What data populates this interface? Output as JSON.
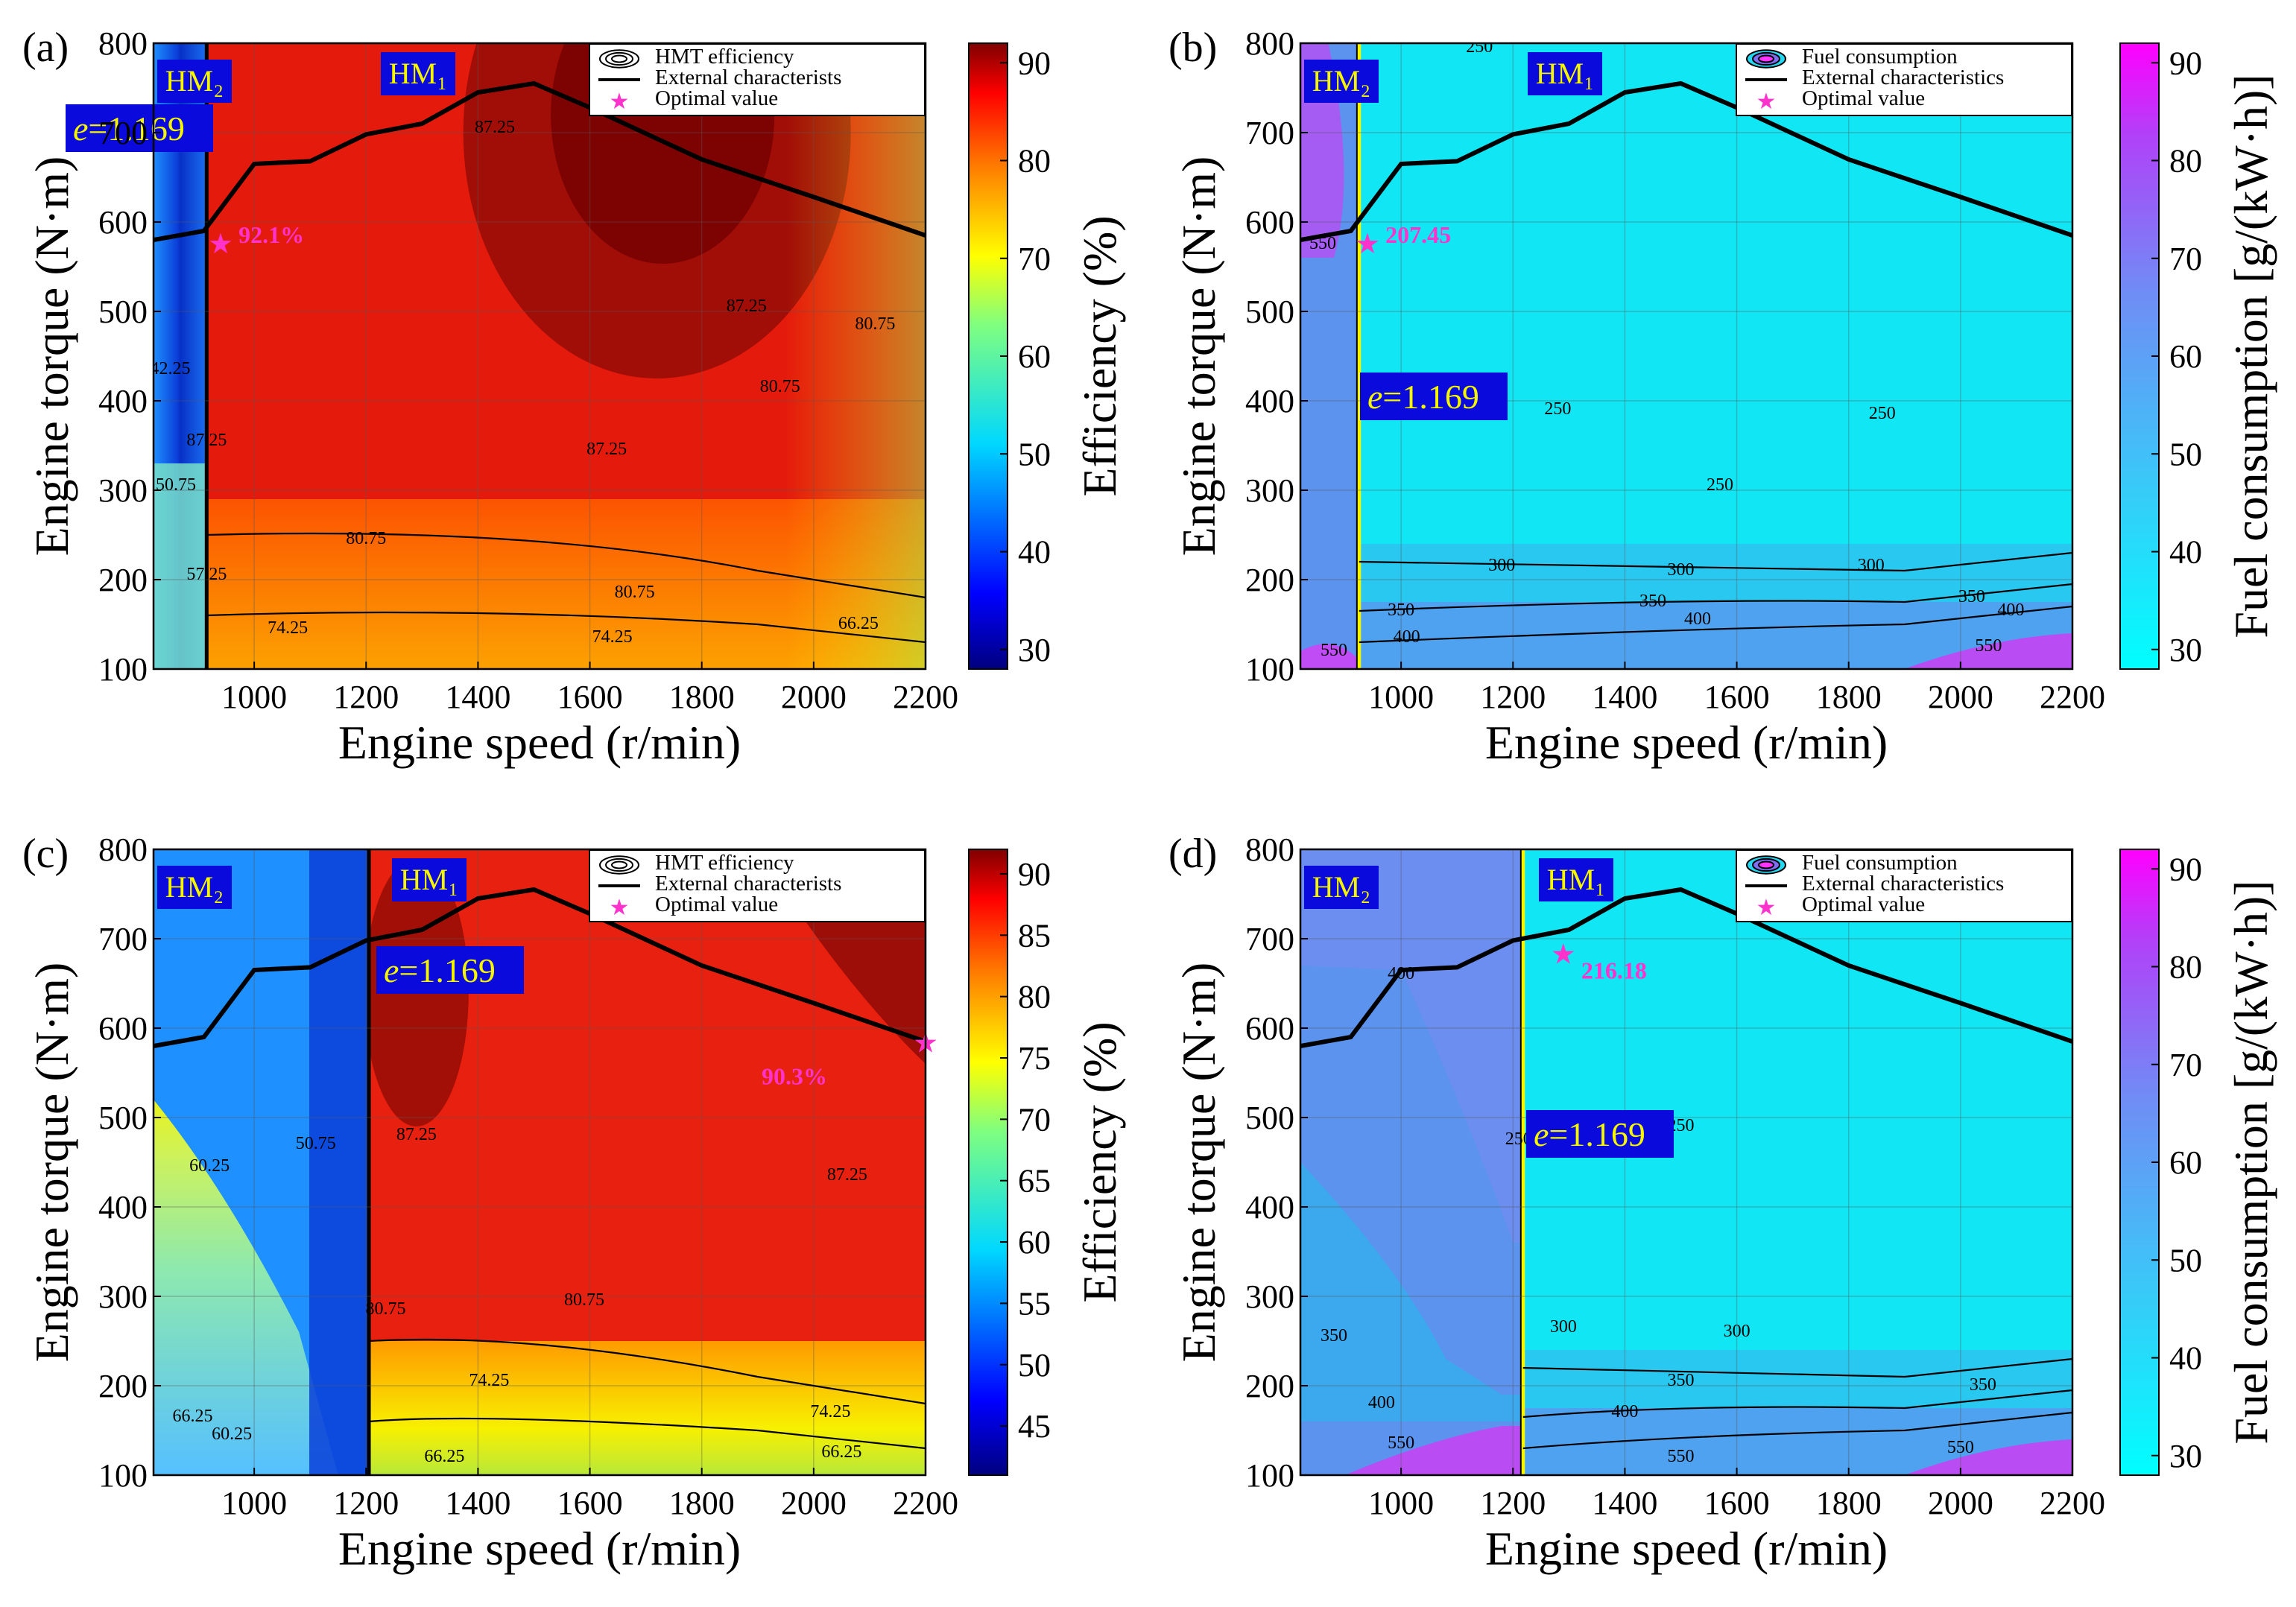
{
  "figure": {
    "colorbar_efficiency_label": "Efficiency (%)",
    "colorbar_fuel_label": "Fuel consumption [g/(kW·h)]"
  },
  "chart_data": [
    {
      "id": "a",
      "type": "heatmap",
      "panel_label": "(a)",
      "xlabel": "Engine speed (r/min)",
      "ylabel": "Engine torque (N·m)",
      "xlim": [
        820,
        2200
      ],
      "ylim": [
        100,
        800
      ],
      "xticks": [
        "1000",
        "1200",
        "1400",
        "1600",
        "1800",
        "2000",
        "2200"
      ],
      "yticks": [
        "100",
        "200",
        "300",
        "400",
        "500",
        "600",
        "700",
        "800"
      ],
      "xtick_values": [
        1000,
        1200,
        1400,
        1600,
        1800,
        2000,
        2200
      ],
      "ytick_values": [
        100,
        200,
        300,
        400,
        500,
        600,
        700,
        800
      ],
      "metric": "efficiency",
      "colorbar": {
        "label": "Efficiency (%)",
        "min": 28,
        "max": 92,
        "ticks": [
          "30",
          "40",
          "50",
          "60",
          "70",
          "80",
          "90"
        ],
        "tick_values": [
          30,
          40,
          50,
          60,
          70,
          80,
          90
        ]
      },
      "mode_boundary_speed": 915,
      "mode_labels": {
        "left": "HM₂",
        "right": "HM₁"
      },
      "ratio_label": "=1.169",
      "ratio_symbol": "e",
      "optimal": {
        "x": 940,
        "y": 575,
        "label": "92.1%"
      },
      "contour_labels": [
        "42.25",
        "50.75",
        "57.25",
        "74.25",
        "80.75",
        "87.25",
        "74.25",
        "80.75",
        "87.25",
        "80.75",
        "66.25",
        "87.25",
        "87.25",
        "80.75"
      ],
      "external_characteristic": {
        "x": [
          820,
          910,
          1000,
          1100,
          1200,
          1300,
          1400,
          1500,
          1600,
          1800,
          2000,
          2200
        ],
        "y": [
          580,
          590,
          665,
          668,
          698,
          710,
          745,
          755,
          728,
          670,
          628,
          585
        ]
      },
      "legend": [
        "HMT efficiency",
        "External characterists",
        "Optimal value"
      ]
    },
    {
      "id": "b",
      "type": "heatmap",
      "panel_label": "(b)",
      "xlabel": "Engine speed (r/min)",
      "ylabel": "Engine torque (N·m)",
      "xlim": [
        820,
        2200
      ],
      "ylim": [
        100,
        800
      ],
      "xticks": [
        "1000",
        "1200",
        "1400",
        "1600",
        "1800",
        "2000",
        "2200"
      ],
      "yticks": [
        "100",
        "200",
        "300",
        "400",
        "500",
        "600",
        "700",
        "800"
      ],
      "xtick_values": [
        1000,
        1200,
        1400,
        1600,
        1800,
        2000,
        2200
      ],
      "ytick_values": [
        100,
        200,
        300,
        400,
        500,
        600,
        700,
        800
      ],
      "metric": "fuel",
      "colorbar": {
        "label": "Fuel consumption [g/(kW·h)]",
        "min": 28,
        "max": 92,
        "ticks": [
          "30",
          "40",
          "50",
          "60",
          "70",
          "80",
          "90"
        ],
        "tick_values": [
          30,
          40,
          50,
          60,
          70,
          80,
          90
        ]
      },
      "mode_boundary_speed": 925,
      "mode_labels": {
        "left": "HM₂",
        "right": "HM₁"
      },
      "ratio_label": "=1.169",
      "ratio_symbol": "e",
      "optimal": {
        "x": 940,
        "y": 575,
        "label": "207.45"
      },
      "contour_labels": [
        "550",
        "250",
        "250",
        "250",
        "300",
        "300",
        "300",
        "350",
        "350",
        "350",
        "400",
        "400",
        "400",
        "550",
        "550",
        "250"
      ],
      "external_characteristic": {
        "x": [
          820,
          910,
          1000,
          1100,
          1200,
          1300,
          1400,
          1500,
          1600,
          1800,
          2000,
          2200
        ],
        "y": [
          580,
          590,
          665,
          668,
          698,
          710,
          745,
          755,
          728,
          670,
          628,
          585
        ]
      },
      "legend": [
        "Fuel consumption",
        "External characteristics",
        "Optimal value"
      ]
    },
    {
      "id": "c",
      "type": "heatmap",
      "panel_label": "(c)",
      "xlabel": "Engine speed (r/min)",
      "ylabel": "Engine torque (N·m)",
      "xlim": [
        820,
        2200
      ],
      "ylim": [
        100,
        800
      ],
      "xticks": [
        "1000",
        "1200",
        "1400",
        "1600",
        "1800",
        "2000",
        "2200"
      ],
      "yticks": [
        "100",
        "200",
        "300",
        "400",
        "500",
        "600",
        "700",
        "800"
      ],
      "xtick_values": [
        1000,
        1200,
        1400,
        1600,
        1800,
        2000,
        2200
      ],
      "ytick_values": [
        100,
        200,
        300,
        400,
        500,
        600,
        700,
        800
      ],
      "metric": "efficiency",
      "colorbar": {
        "label": "Efficiency (%)",
        "min": 41,
        "max": 92,
        "ticks": [
          "45",
          "50",
          "55",
          "60",
          "65",
          "70",
          "75",
          "80",
          "85",
          "90"
        ],
        "tick_values": [
          45,
          50,
          55,
          60,
          65,
          70,
          75,
          80,
          85,
          90
        ]
      },
      "mode_boundary_speed": 1205,
      "mode_labels": {
        "left": "HM₂",
        "right": "HM₁"
      },
      "ratio_label": "=1.169",
      "ratio_symbol": "e",
      "optimal": {
        "x": 2200,
        "y": 583,
        "label": "90.3%"
      },
      "contour_labels": [
        "60.25",
        "66.25",
        "60.25",
        "50.75",
        "80.75",
        "87.25",
        "80.75",
        "74.25",
        "74.25",
        "66.25",
        "66.25",
        "87.25"
      ],
      "external_characteristic": {
        "x": [
          820,
          910,
          1000,
          1100,
          1200,
          1300,
          1400,
          1500,
          1600,
          1800,
          2000,
          2200
        ],
        "y": [
          580,
          590,
          665,
          668,
          698,
          710,
          745,
          755,
          728,
          670,
          628,
          585
        ]
      },
      "legend": [
        "HMT efficiency",
        "External characterists",
        "Optimal value"
      ]
    },
    {
      "id": "d",
      "type": "heatmap",
      "panel_label": "(d)",
      "xlabel": "Engine speed (r/min)",
      "ylabel": "Engine torque (N·m)",
      "xlim": [
        820,
        2200
      ],
      "ylim": [
        100,
        800
      ],
      "xticks": [
        "1000",
        "1200",
        "1400",
        "1600",
        "1800",
        "2000",
        "2200"
      ],
      "yticks": [
        "100",
        "200",
        "300",
        "400",
        "500",
        "600",
        "700",
        "800"
      ],
      "xtick_values": [
        1000,
        1200,
        1400,
        1600,
        1800,
        2000,
        2200
      ],
      "ytick_values": [
        100,
        200,
        300,
        400,
        500,
        600,
        700,
        800
      ],
      "metric": "fuel",
      "colorbar": {
        "label": "Fuel consumption [g/(kW·h)]",
        "min": 28,
        "max": 92,
        "ticks": [
          "30",
          "40",
          "50",
          "60",
          "70",
          "80",
          "90"
        ],
        "tick_values": [
          30,
          40,
          50,
          60,
          70,
          80,
          90
        ]
      },
      "mode_boundary_speed": 1218,
      "mode_labels": {
        "left": "HM₂",
        "right": "HM₁"
      },
      "ratio_label": "=1.169",
      "ratio_symbol": "e",
      "optimal": {
        "x": 1290,
        "y": 682,
        "label": "216.18"
      },
      "contour_labels": [
        "400",
        "350",
        "400",
        "550",
        "250",
        "250",
        "300",
        "300",
        "350",
        "350",
        "400",
        "550",
        "550"
      ],
      "external_characteristic": {
        "x": [
          820,
          910,
          1000,
          1100,
          1200,
          1300,
          1400,
          1500,
          1600,
          1800,
          2000,
          2200
        ],
        "y": [
          580,
          590,
          665,
          668,
          698,
          710,
          745,
          755,
          728,
          670,
          628,
          585
        ]
      },
      "legend": [
        "Fuel consumption",
        "External characteristics",
        "Optimal value"
      ]
    }
  ]
}
